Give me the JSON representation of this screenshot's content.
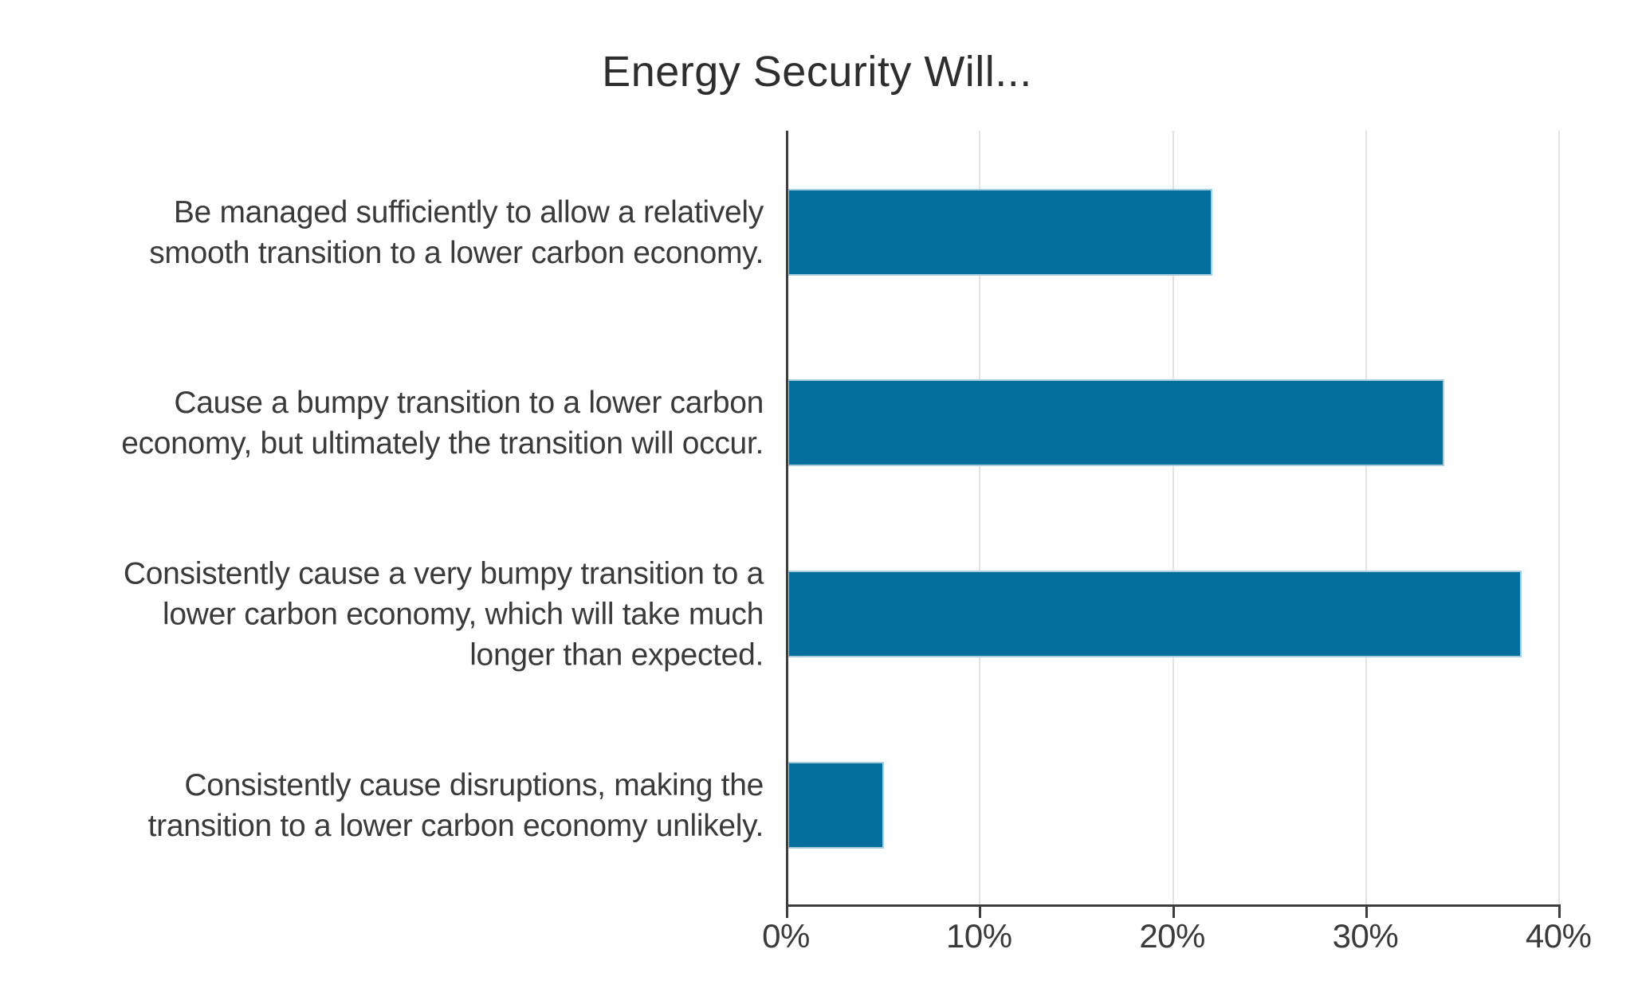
{
  "title": "Energy Security Will...",
  "chart_data": {
    "type": "bar",
    "orientation": "horizontal",
    "title": "Energy Security Will...",
    "categories": [
      "Be managed sufficiently to allow a relatively smooth transition to a lower carbon economy.",
      "Cause a bumpy transition to a lower carbon economy, but ultimately the transition will occur.",
      "Consistently cause a very bumpy transition to a lower carbon economy, which will take much longer than expected.",
      "Consistently cause disruptions, making the transition to a lower carbon economy unlikely."
    ],
    "category_lines": [
      [
        "Be managed sufficiently to allow a relatively",
        "smooth transition to a lower carbon economy."
      ],
      [
        "Cause a bumpy transition to a lower carbon",
        "economy, but ultimately the transition will occur."
      ],
      [
        "Consistently cause a very bumpy transition to a",
        "lower carbon economy, which will take much",
        "longer than expected."
      ],
      [
        "Consistently cause disruptions, making the",
        "transition to a lower carbon economy unlikely."
      ]
    ],
    "values": [
      22,
      34,
      38,
      5
    ],
    "value_unit": "%",
    "xlabel": "",
    "ylabel": "",
    "xlim": [
      0,
      43
    ],
    "xticks": [
      0,
      10,
      20,
      30,
      40
    ],
    "xtick_labels": [
      "0%",
      "10%",
      "20%",
      "30%",
      "40%"
    ],
    "grid": "vertical-only",
    "legend": "none",
    "colors": {
      "bar": "#046E9C",
      "bar_edge": "#A9CCDE",
      "gridline": "#E3E3E3",
      "axis": "#3D3D3D",
      "label_text": "#3A3A3A",
      "title_text": "#2E2E2E",
      "background": "#FFFFFF"
    }
  }
}
